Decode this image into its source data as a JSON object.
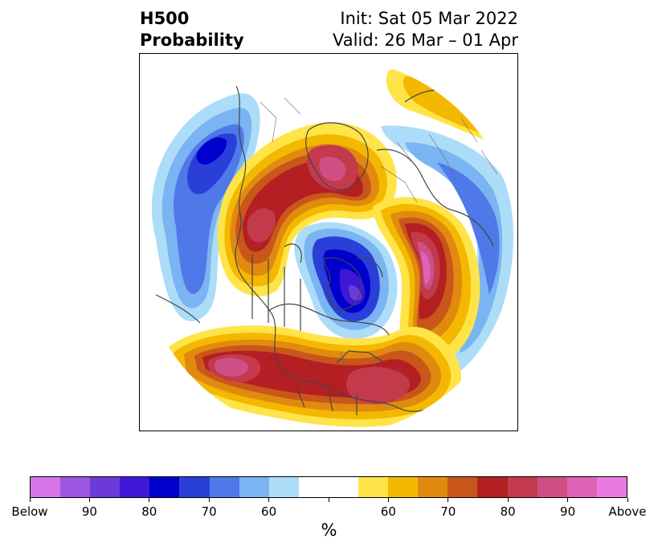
{
  "title": {
    "left_line1": "H500",
    "left_line2": "Probability",
    "right_line1": "Init: Sat 05 Mar 2022",
    "right_line2": "Valid: 26 Mar – 01 Apr"
  },
  "map": {
    "projection": "north-polar-stereographic",
    "features": [
      {
        "name": "negative-anomaly-gulf-of-alaska",
        "sign": "below",
        "peak_percent": 80
      },
      {
        "name": "negative-anomaly-hudson-bay-greenland",
        "sign": "below",
        "peak_percent": "Below"
      },
      {
        "name": "negative-anomaly-europe-russia",
        "sign": "below",
        "peak_percent": 60
      },
      {
        "name": "positive-anomaly-scandinavia",
        "sign": "above",
        "peak_percent": 90
      },
      {
        "name": "positive-anomaly-eastern-siberia",
        "sign": "above",
        "peak_percent": 90
      },
      {
        "name": "positive-anomaly-central-russia",
        "sign": "above",
        "peak_percent": 80
      },
      {
        "name": "positive-anomaly-north-pacific-us",
        "sign": "above",
        "peak_percent": 90
      },
      {
        "name": "positive-anomaly-southeast-us",
        "sign": "above",
        "peak_percent": 80
      },
      {
        "name": "positive-anomaly-arctic-fringe",
        "sign": "above",
        "peak_percent": 60
      }
    ]
  },
  "colorbar": {
    "colors": [
      "#d574e8",
      "#9d56e0",
      "#6b3ad8",
      "#3f17d6",
      "#0000cc",
      "#2a3fd8",
      "#4f79e8",
      "#7ab4f2",
      "#addcf8",
      "#ffffff",
      "#ffffff",
      "#ffe449",
      "#f4b800",
      "#e08a10",
      "#c9561a",
      "#b31f22",
      "#c23a4c",
      "#cf4f85",
      "#de62b5",
      "#e97be0"
    ],
    "labels": [
      "Below",
      "90",
      "80",
      "70",
      "60",
      "",
      "60",
      "70",
      "80",
      "90",
      "Above"
    ],
    "unit": "%"
  }
}
